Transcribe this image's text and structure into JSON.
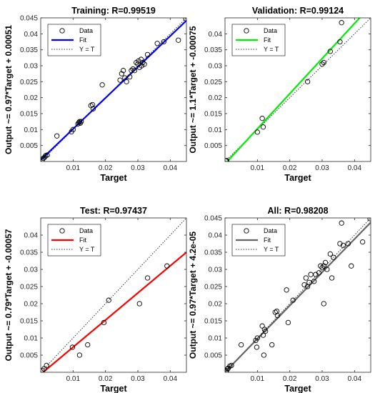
{
  "chart_data": [
    {
      "type": "scatter",
      "title": "Training: R=0.99519",
      "xlabel": "Target",
      "ylabel": "Output ~= 0.97*Target + 0.00051",
      "xlim": [
        0,
        0.045
      ],
      "ylim": [
        0,
        0.045
      ],
      "xticks": [
        "0.01",
        "0.02",
        "0.03",
        "0.04"
      ],
      "yticks": [
        "0.005",
        "0.01",
        "0.015",
        "0.02",
        "0.025",
        "0.03",
        "0.035",
        "0.04",
        "0.045"
      ],
      "fit_color": "#0000ff",
      "fit": {
        "slope": 0.97,
        "intercept": 0.00051
      },
      "legend": [
        "Data",
        "Fit",
        "Y = T"
      ],
      "legend_position": "top-left",
      "points": [
        [
          0.0005,
          0.0005
        ],
        [
          0.0008,
          0.001
        ],
        [
          0.0012,
          0.0013
        ],
        [
          0.0015,
          0.0018
        ],
        [
          0.002,
          0.002
        ],
        [
          0.005,
          0.008
        ],
        [
          0.0095,
          0.0093
        ],
        [
          0.01,
          0.01
        ],
        [
          0.0115,
          0.0118
        ],
        [
          0.0118,
          0.0122
        ],
        [
          0.012,
          0.0125
        ],
        [
          0.0122,
          0.012
        ],
        [
          0.0125,
          0.0125
        ],
        [
          0.0155,
          0.0175
        ],
        [
          0.016,
          0.0178
        ],
        [
          0.0162,
          0.0165
        ],
        [
          0.019,
          0.024
        ],
        [
          0.0245,
          0.0255
        ],
        [
          0.025,
          0.0275
        ],
        [
          0.0255,
          0.0285
        ],
        [
          0.026,
          0.0262
        ],
        [
          0.0265,
          0.025
        ],
        [
          0.0275,
          0.0265
        ],
        [
          0.028,
          0.0285
        ],
        [
          0.0285,
          0.029
        ],
        [
          0.029,
          0.0285
        ],
        [
          0.0295,
          0.031
        ],
        [
          0.03,
          0.0305
        ],
        [
          0.0302,
          0.0315
        ],
        [
          0.0305,
          0.0295
        ],
        [
          0.031,
          0.032
        ],
        [
          0.0312,
          0.03
        ],
        [
          0.0315,
          0.031
        ],
        [
          0.032,
          0.0305
        ],
        [
          0.033,
          0.0335
        ],
        [
          0.036,
          0.037
        ],
        [
          0.038,
          0.0375
        ],
        [
          0.0425,
          0.038
        ],
        [
          0.0448,
          0.0448
        ]
      ]
    },
    {
      "type": "scatter",
      "title": "Validation: R=0.99124",
      "xlabel": "Target",
      "ylabel": "Output ~= 1.1*Target + -0.00075",
      "xlim": [
        0,
        0.045
      ],
      "ylim": [
        0,
        0.045
      ],
      "xticks": [
        "0.01",
        "0.02",
        "0.03",
        "0.04"
      ],
      "yticks": [
        "0.005",
        "0.01",
        "0.015",
        "0.02",
        "0.025",
        "0.03",
        "0.035",
        "0.04"
      ],
      "fit_color": "#00ee00",
      "fit": {
        "slope": 1.1,
        "intercept": -0.00075
      },
      "legend": [
        "Data",
        "Fit",
        "Y = T"
      ],
      "legend_position": "top-left",
      "points": [
        [
          0.0003,
          0.0002
        ],
        [
          0.0005,
          0.0003
        ],
        [
          0.01,
          0.0092
        ],
        [
          0.0115,
          0.0135
        ],
        [
          0.0118,
          0.0108
        ],
        [
          0.0255,
          0.025
        ],
        [
          0.03,
          0.0305
        ],
        [
          0.0305,
          0.031
        ],
        [
          0.0325,
          0.0345
        ],
        [
          0.0355,
          0.0375
        ],
        [
          0.036,
          0.0435
        ]
      ]
    },
    {
      "type": "scatter",
      "title": "Test: R=0.97437",
      "xlabel": "Target",
      "ylabel": "Output ~= 0.79*Target + -0.00057",
      "xlim": [
        0,
        0.045
      ],
      "ylim": [
        0,
        0.045
      ],
      "xticks": [
        "0.01",
        "0.02",
        "0.03",
        "0.04"
      ],
      "yticks": [
        "0.005",
        "0.01",
        "0.015",
        "0.02",
        "0.025",
        "0.03",
        "0.035",
        "0.04"
      ],
      "fit_color": "#ff0000",
      "fit": {
        "slope": 0.79,
        "intercept": -0.00057
      },
      "legend": [
        "Data",
        "Fit",
        "Y = T"
      ],
      "legend_position": "top-left",
      "points": [
        [
          0.0005,
          0.0005
        ],
        [
          0.001,
          0.001
        ],
        [
          0.0018,
          0.002
        ],
        [
          0.0098,
          0.0073
        ],
        [
          0.012,
          0.005
        ],
        [
          0.0145,
          0.008
        ],
        [
          0.0195,
          0.0145
        ],
        [
          0.021,
          0.021
        ],
        [
          0.0305,
          0.02
        ],
        [
          0.033,
          0.0275
        ],
        [
          0.039,
          0.031
        ]
      ]
    },
    {
      "type": "scatter",
      "title": "All: R=0.98208",
      "xlabel": "Target",
      "ylabel": "Output ~= 0.97*Target + 4.2e-05",
      "xlim": [
        0,
        0.045
      ],
      "ylim": [
        0,
        0.045
      ],
      "xticks": [
        "0.01",
        "0.02",
        "0.03",
        "0.04"
      ],
      "yticks": [
        "0.005",
        "0.01",
        "0.015",
        "0.02",
        "0.025",
        "0.03",
        "0.035",
        "0.04",
        "0.045"
      ],
      "fit_color": "#666666",
      "fit": {
        "slope": 0.97,
        "intercept": 4.2e-05
      },
      "legend": [
        "Data",
        "Fit",
        "Y = T"
      ],
      "legend_position": "top-left",
      "points": [
        [
          0.0003,
          0.0002
        ],
        [
          0.0005,
          0.0005
        ],
        [
          0.0008,
          0.001
        ],
        [
          0.001,
          0.0012
        ],
        [
          0.0015,
          0.0018
        ],
        [
          0.002,
          0.002
        ],
        [
          0.005,
          0.008
        ],
        [
          0.0095,
          0.0093
        ],
        [
          0.0098,
          0.0073
        ],
        [
          0.01,
          0.01
        ],
        [
          0.0115,
          0.0135
        ],
        [
          0.0118,
          0.0108
        ],
        [
          0.012,
          0.005
        ],
        [
          0.0122,
          0.0125
        ],
        [
          0.0125,
          0.012
        ],
        [
          0.0145,
          0.008
        ],
        [
          0.0155,
          0.0175
        ],
        [
          0.016,
          0.0178
        ],
        [
          0.0162,
          0.0165
        ],
        [
          0.019,
          0.024
        ],
        [
          0.0195,
          0.0145
        ],
        [
          0.021,
          0.021
        ],
        [
          0.0245,
          0.0255
        ],
        [
          0.025,
          0.0275
        ],
        [
          0.0255,
          0.025
        ],
        [
          0.026,
          0.0262
        ],
        [
          0.0265,
          0.0285
        ],
        [
          0.0275,
          0.0265
        ],
        [
          0.028,
          0.0285
        ],
        [
          0.029,
          0.029
        ],
        [
          0.0295,
          0.031
        ],
        [
          0.03,
          0.0305
        ],
        [
          0.0305,
          0.02
        ],
        [
          0.0305,
          0.031
        ],
        [
          0.031,
          0.032
        ],
        [
          0.0315,
          0.03
        ],
        [
          0.0325,
          0.0345
        ],
        [
          0.033,
          0.0275
        ],
        [
          0.0335,
          0.0335
        ],
        [
          0.0355,
          0.0375
        ],
        [
          0.036,
          0.0435
        ],
        [
          0.0365,
          0.037
        ],
        [
          0.038,
          0.0375
        ],
        [
          0.039,
          0.031
        ],
        [
          0.0425,
          0.038
        ],
        [
          0.0448,
          0.0448
        ]
      ]
    }
  ]
}
